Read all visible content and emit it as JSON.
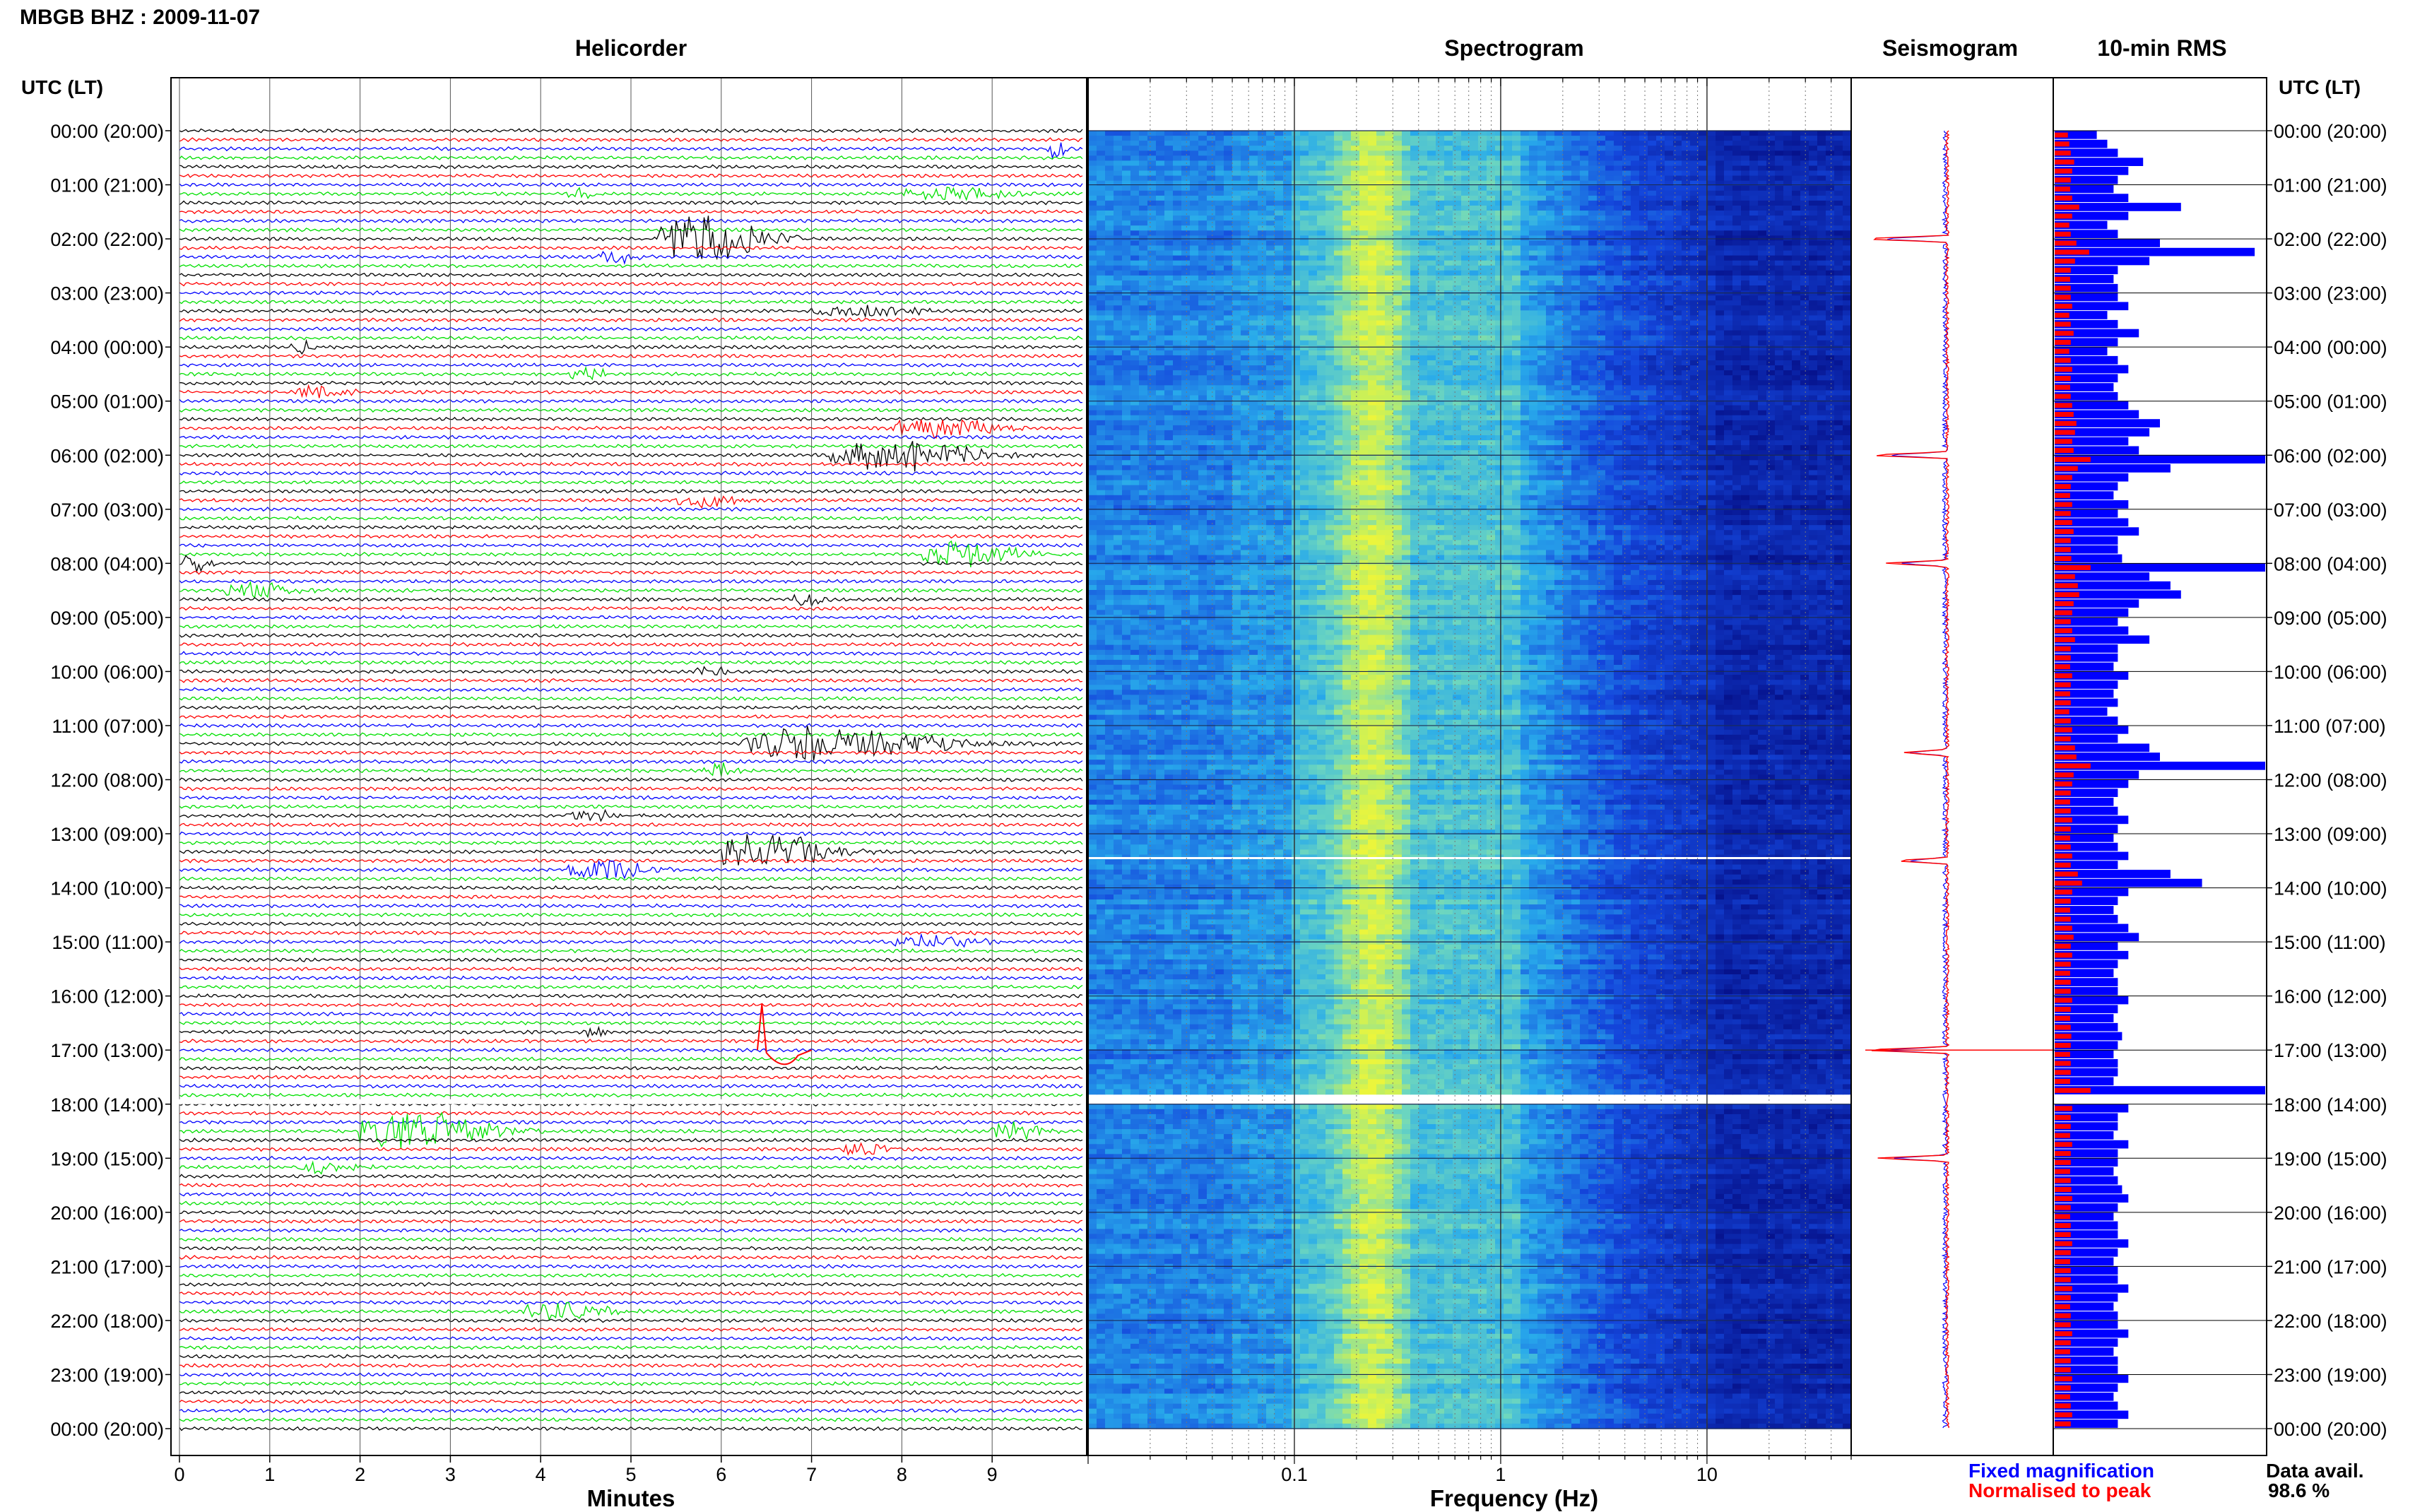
{
  "header": {
    "title": "MBGB BHZ : 2009-11-07"
  },
  "panels": {
    "helicorder": "Helicorder",
    "spectrogram": "Spectrogram",
    "seismogram": "Seismogram",
    "rms": "10-min RMS"
  },
  "axes": {
    "time_header_left": "UTC (LT)",
    "time_header_right": "UTC (LT)",
    "helicorder_xlabel": "Minutes",
    "spectrogram_xlabel": "Frequency (Hz)"
  },
  "legend": {
    "fixed": "Fixed magnification",
    "normalised": "Normalised to peak"
  },
  "availability": {
    "label": "Data avail.",
    "value": "98.6 %"
  },
  "colors": {
    "trace_cycle": [
      "#000000",
      "#ff0000",
      "#0000ff",
      "#00e000"
    ],
    "fixed": "#0000ff",
    "normalised": "#ff0000",
    "spectrogram_low": "#0b1e9e",
    "spectrogram_mid": "#29b3ea",
    "spectrogram_high": "#c8f05a"
  },
  "chart_data": [
    {
      "type": "line",
      "title": "Helicorder",
      "xlabel": "Minutes",
      "x_ticks": [
        "0",
        "1",
        "2",
        "3",
        "4",
        "5",
        "6",
        "7",
        "8",
        "9"
      ],
      "xlim": [
        0,
        10
      ],
      "time_labels": [
        "00:00 (20:00)",
        "01:00 (21:00)",
        "02:00 (22:00)",
        "03:00 (23:00)",
        "04:00 (00:00)",
        "05:00 (01:00)",
        "06:00 (02:00)",
        "07:00 (03:00)",
        "08:00 (04:00)",
        "09:00 (05:00)",
        "10:00 (06:00)",
        "11:00 (07:00)",
        "12:00 (08:00)",
        "13:00 (09:00)",
        "14:00 (10:00)",
        "15:00 (11:00)",
        "16:00 (12:00)",
        "17:00 (13:00)",
        "18:00 (14:00)",
        "19:00 (15:00)",
        "20:00 (16:00)",
        "21:00 (17:00)",
        "22:00 (18:00)",
        "23:00 (19:00)",
        "00:00 (20:00)"
      ],
      "lines_per_hour": 6,
      "data_gap_hours": [
        17.83,
        18.0
      ],
      "events": [
        {
          "hour": 0.33,
          "start_min": 9.6,
          "end_min": 10.0,
          "amp": 0.5
        },
        {
          "hour": 1.17,
          "start_min": 4.3,
          "end_min": 4.8,
          "amp": 0.4
        },
        {
          "hour": 1.17,
          "start_min": 8.0,
          "end_min": 10.0,
          "amp": 0.35
        },
        {
          "hour": 2.0,
          "start_min": 5.3,
          "end_min": 7.3,
          "amp": 1.2
        },
        {
          "hour": 2.33,
          "start_min": 4.6,
          "end_min": 5.4,
          "amp": 0.3
        },
        {
          "hour": 3.33,
          "start_min": 7.0,
          "end_min": 9.0,
          "amp": 0.3
        },
        {
          "hour": 4.0,
          "start_min": 1.2,
          "end_min": 1.7,
          "amp": 0.35
        },
        {
          "hour": 4.5,
          "start_min": 4.3,
          "end_min": 5.0,
          "amp": 0.4
        },
        {
          "hour": 4.83,
          "start_min": 1.3,
          "end_min": 2.3,
          "amp": 0.3
        },
        {
          "hour": 5.5,
          "start_min": 7.9,
          "end_min": 10.0,
          "amp": 0.5
        },
        {
          "hour": 6.0,
          "start_min": 7.2,
          "end_min": 10.0,
          "amp": 0.8
        },
        {
          "hour": 6.83,
          "start_min": 5.5,
          "end_min": 6.8,
          "amp": 0.3
        },
        {
          "hour": 7.83,
          "start_min": 8.2,
          "end_min": 10.0,
          "amp": 0.7
        },
        {
          "hour": 8.0,
          "start_min": 0.0,
          "end_min": 0.6,
          "amp": 0.5
        },
        {
          "hour": 8.5,
          "start_min": 0.5,
          "end_min": 1.8,
          "amp": 0.45
        },
        {
          "hour": 8.67,
          "start_min": 6.8,
          "end_min": 7.4,
          "amp": 0.4
        },
        {
          "hour": 10.0,
          "start_min": 5.7,
          "end_min": 6.4,
          "amp": 0.25
        },
        {
          "hour": 11.33,
          "start_min": 6.2,
          "end_min": 10.0,
          "amp": 0.9
        },
        {
          "hour": 11.83,
          "start_min": 5.8,
          "end_min": 6.5,
          "amp": 0.35
        },
        {
          "hour": 12.67,
          "start_min": 4.3,
          "end_min": 5.5,
          "amp": 0.3
        },
        {
          "hour": 13.33,
          "start_min": 6.0,
          "end_min": 8.0,
          "amp": 1.0
        },
        {
          "hour": 13.67,
          "start_min": 4.3,
          "end_min": 5.8,
          "amp": 0.55
        },
        {
          "hour": 15.0,
          "start_min": 7.9,
          "end_min": 9.5,
          "amp": 0.35
        },
        {
          "hour": 16.67,
          "start_min": 4.5,
          "end_min": 4.9,
          "amp": 0.3
        },
        {
          "hour": 18.5,
          "start_min": 2.0,
          "end_min": 4.5,
          "amp": 1.0
        },
        {
          "hour": 18.5,
          "start_min": 9.0,
          "end_min": 10.0,
          "amp": 0.45
        },
        {
          "hour": 18.83,
          "start_min": 7.3,
          "end_min": 8.3,
          "amp": 0.3
        },
        {
          "hour": 19.17,
          "start_min": 1.3,
          "end_min": 2.5,
          "amp": 0.3
        },
        {
          "hour": 21.83,
          "start_min": 3.8,
          "end_min": 5.6,
          "amp": 0.45
        }
      ]
    },
    {
      "type": "heatmap",
      "title": "Spectrogram",
      "xlabel": "Frequency (Hz)",
      "x_scale": "log",
      "xlim": [
        0.01,
        50
      ],
      "x_ticks": [
        0.1,
        1,
        10
      ],
      "x_tick_labels": [
        "0.1",
        "1",
        "10"
      ],
      "y_hours": [
        0,
        24
      ],
      "data_gap_hours": [
        17.83,
        18.0
      ]
    },
    {
      "type": "line",
      "title": "Seismogram",
      "series": [
        {
          "name": "Fixed magnification"
        },
        {
          "name": "Normalised to peak"
        }
      ],
      "spikes": [
        {
          "hour": 2.0,
          "amp": 1.0
        },
        {
          "hour": 6.0,
          "amp": 0.9
        },
        {
          "hour": 8.0,
          "amp": 0.7
        },
        {
          "hour": 11.5,
          "amp": 0.5
        },
        {
          "hour": 13.5,
          "amp": 0.6
        },
        {
          "hour": 17.0,
          "amp": 1.0
        },
        {
          "hour": 19.0,
          "amp": 0.8
        }
      ]
    },
    {
      "type": "bar",
      "title": "10-min RMS",
      "series": [
        {
          "name": "Fixed magnification"
        },
        {
          "name": "Normalised to peak"
        }
      ],
      "rms_relative": [
        0.2,
        0.25,
        0.3,
        0.42,
        0.35,
        0.3,
        0.28,
        0.35,
        0.6,
        0.35,
        0.25,
        0.3,
        0.5,
        0.95,
        0.45,
        0.3,
        0.28,
        0.3,
        0.3,
        0.35,
        0.25,
        0.3,
        0.4,
        0.3,
        0.25,
        0.3,
        0.35,
        0.3,
        0.28,
        0.3,
        0.35,
        0.4,
        0.5,
        0.45,
        0.35,
        0.4,
        1.0,
        0.55,
        0.35,
        0.3,
        0.28,
        0.35,
        0.3,
        0.35,
        0.4,
        0.3,
        0.3,
        0.32,
        1.0,
        0.45,
        0.55,
        0.6,
        0.4,
        0.35,
        0.3,
        0.35,
        0.45,
        0.3,
        0.3,
        0.28,
        0.35,
        0.3,
        0.28,
        0.3,
        0.25,
        0.3,
        0.35,
        0.3,
        0.45,
        0.5,
        1.0,
        0.4,
        0.35,
        0.3,
        0.28,
        0.3,
        0.35,
        0.3,
        0.28,
        0.3,
        0.35,
        0.3,
        0.55,
        0.7,
        0.35,
        0.3,
        0.28,
        0.3,
        0.35,
        0.4,
        0.3,
        0.35,
        0.3,
        0.28,
        0.3,
        0.3,
        0.35,
        0.3,
        0.28,
        0.3,
        0.32,
        0.3,
        0.28,
        0.3,
        0.3,
        0.28,
        1.0,
        0.3,
        0.35,
        0.3,
        0.3,
        0.28,
        0.35,
        0.3,
        0.3,
        0.28,
        0.3,
        0.32,
        0.35,
        0.3,
        0.28,
        0.3,
        0.3,
        0.35,
        0.3,
        0.28,
        0.3,
        0.3,
        0.35,
        0.3,
        0.28,
        0.3,
        0.3,
        0.35,
        0.3,
        0.28,
        0.3,
        0.3,
        0.35,
        0.3,
        0.28,
        0.3,
        0.35,
        0.3
      ],
      "data_gap_hours": [
        17.83,
        18.0
      ]
    }
  ]
}
